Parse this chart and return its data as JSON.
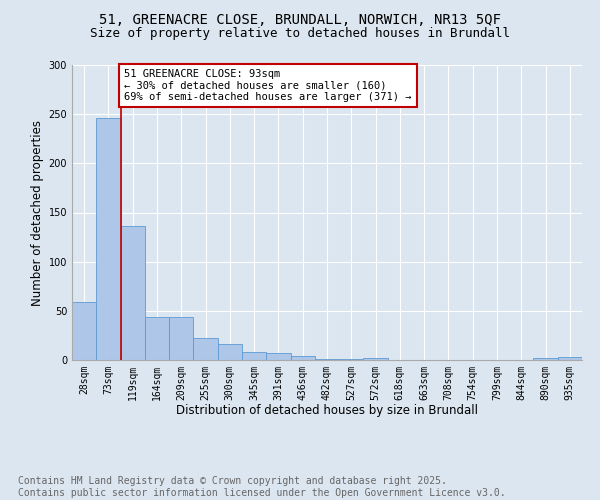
{
  "title": "51, GREENACRE CLOSE, BRUNDALL, NORWICH, NR13 5QF",
  "subtitle": "Size of property relative to detached houses in Brundall",
  "xlabel": "Distribution of detached houses by size in Brundall",
  "ylabel": "Number of detached properties",
  "bar_labels": [
    "28sqm",
    "73sqm",
    "119sqm",
    "164sqm",
    "209sqm",
    "255sqm",
    "300sqm",
    "345sqm",
    "391sqm",
    "436sqm",
    "482sqm",
    "527sqm",
    "572sqm",
    "618sqm",
    "663sqm",
    "708sqm",
    "754sqm",
    "799sqm",
    "844sqm",
    "890sqm",
    "935sqm"
  ],
  "bar_values": [
    59,
    246,
    136,
    44,
    44,
    22,
    16,
    8,
    7,
    4,
    1,
    1,
    2,
    0,
    0,
    0,
    0,
    0,
    0,
    2,
    3
  ],
  "bar_color": "#aec6e8",
  "bar_edge_color": "#5b9bd5",
  "vline_x": 1.5,
  "vline_color": "#c00000",
  "annotation_text": "51 GREENACRE CLOSE: 93sqm\n← 30% of detached houses are smaller (160)\n69% of semi-detached houses are larger (371) →",
  "annotation_box_color": "#ffffff",
  "annotation_box_edgecolor": "#c00000",
  "ylim": [
    0,
    300
  ],
  "yticks": [
    0,
    50,
    100,
    150,
    200,
    250,
    300
  ],
  "footnote": "Contains HM Land Registry data © Crown copyright and database right 2025.\nContains public sector information licensed under the Open Government Licence v3.0.",
  "background_color": "#dce6f0",
  "plot_background_color": "#dce6f0",
  "grid_color": "#ffffff",
  "title_fontsize": 10,
  "subtitle_fontsize": 9,
  "axis_label_fontsize": 8.5,
  "tick_fontsize": 7,
  "annotation_fontsize": 7.5,
  "footnote_fontsize": 7,
  "footnote_color": "#666666"
}
